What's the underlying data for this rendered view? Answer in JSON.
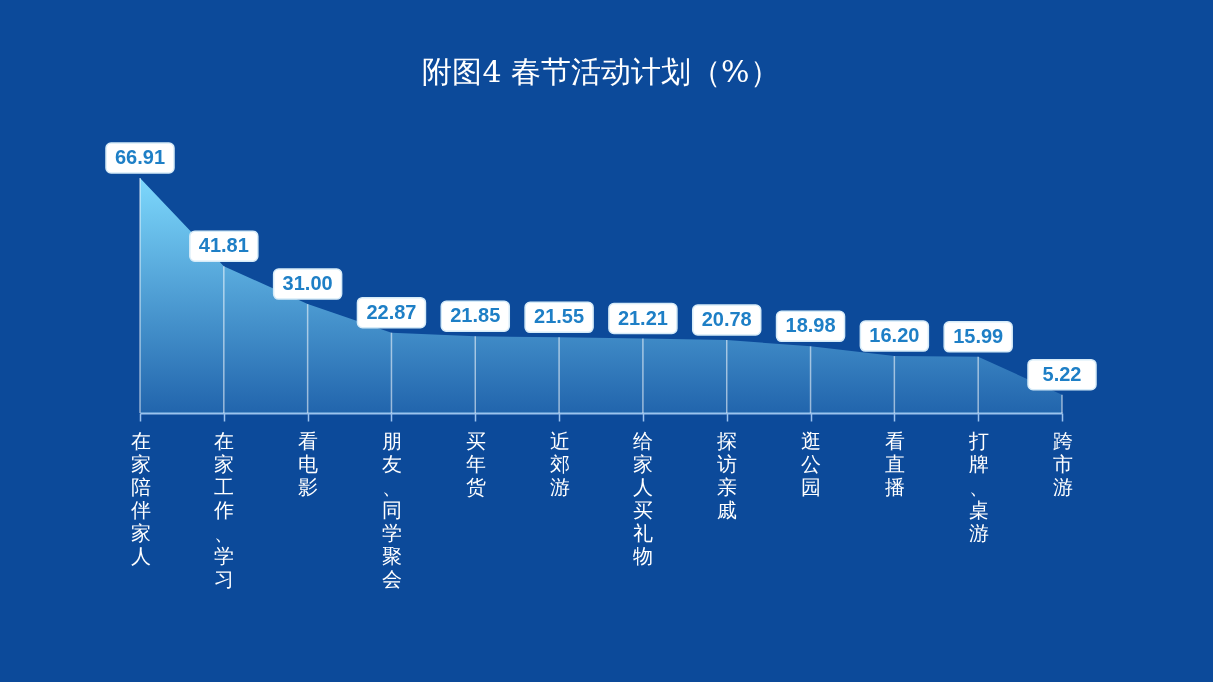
{
  "chart_data": {
    "type": "area",
    "title": "附图4 春节活动计划（%）",
    "categories": [
      "在家陪伴家人",
      "在家工作、学习",
      "看电影",
      "朋友、同学聚会",
      "买年货",
      "近郊游",
      "给家人买礼物",
      "探访亲戚",
      "逛公园",
      "看直播",
      "打牌、桌游",
      "跨市游"
    ],
    "values": [
      66.91,
      41.81,
      31.0,
      22.87,
      21.85,
      21.55,
      21.21,
      20.78,
      18.98,
      16.2,
      15.99,
      5.22
    ],
    "value_labels": [
      "66.91",
      "41.81",
      "31.00",
      "22.87",
      "21.85",
      "21.55",
      "21.21",
      "20.78",
      "18.98",
      "16.20",
      "15.99",
      "5.22"
    ],
    "color": "#7dd8fc"
  }
}
